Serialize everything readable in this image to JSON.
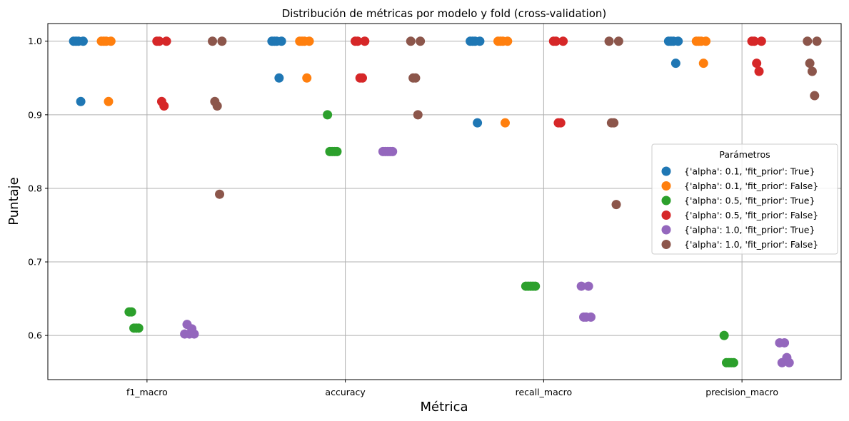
{
  "chart_data": {
    "type": "scatter",
    "title": "Distribución de métricas por modelo y fold (cross-validation)",
    "xlabel": "Métrica",
    "ylabel": "Puntaje",
    "categories": [
      "f1_macro",
      "accuracy",
      "recall_macro",
      "precision_macro"
    ],
    "ylim": [
      0.54,
      1.024
    ],
    "yticks": [
      "0.6",
      "0.7",
      "0.8",
      "0.9",
      "1.0"
    ],
    "grid": true,
    "legend": {
      "title": "Parámetros",
      "placement": "center-right"
    },
    "series": [
      {
        "name": "{'alpha': 0.1, 'fit_prior': True}",
        "color": "#1f77b4",
        "offset": -0.35,
        "values": [
          [
            1.0,
            1.0,
            1.0,
            0.918,
            1.0
          ],
          [
            1.0,
            1.0,
            1.0,
            0.95,
            1.0
          ],
          [
            1.0,
            1.0,
            1.0,
            0.889,
            1.0
          ],
          [
            1.0,
            1.0,
            1.0,
            0.97,
            1.0
          ]
        ]
      },
      {
        "name": "{'alpha': 0.1, 'fit_prior': False}",
        "color": "#ff7f0e",
        "offset": -0.21,
        "values": [
          [
            1.0,
            1.0,
            1.0,
            0.918,
            1.0
          ],
          [
            1.0,
            1.0,
            1.0,
            0.95,
            1.0
          ],
          [
            1.0,
            1.0,
            1.0,
            0.889,
            1.0
          ],
          [
            1.0,
            1.0,
            1.0,
            0.97,
            1.0
          ]
        ]
      },
      {
        "name": "{'alpha': 0.5, 'fit_prior': True}",
        "color": "#2ca02c",
        "offset": -0.07,
        "values": [
          [
            0.632,
            0.632,
            0.61,
            0.61,
            0.61
          ],
          [
            0.9,
            0.85,
            0.85,
            0.85,
            0.85
          ],
          [
            0.667,
            0.667,
            0.667,
            0.667,
            0.667
          ],
          [
            0.6,
            0.563,
            0.563,
            0.563,
            0.563
          ]
        ]
      },
      {
        "name": "{'alpha': 0.5, 'fit_prior': False}",
        "color": "#d62728",
        "offset": 0.07,
        "values": [
          [
            1.0,
            1.0,
            0.918,
            0.912,
            1.0
          ],
          [
            1.0,
            1.0,
            0.95,
            0.95,
            1.0
          ],
          [
            1.0,
            1.0,
            0.889,
            0.889,
            1.0
          ],
          [
            1.0,
            1.0,
            0.97,
            0.959,
            1.0
          ]
        ]
      },
      {
        "name": "{'alpha': 1.0, 'fit_prior': True}",
        "color": "#9467bd",
        "offset": 0.21,
        "values": [
          [
            0.602,
            0.615,
            0.602,
            0.609,
            0.602
          ],
          [
            0.85,
            0.85,
            0.85,
            0.85,
            0.85
          ],
          [
            0.667,
            0.625,
            0.625,
            0.667,
            0.625
          ],
          [
            0.59,
            0.563,
            0.59,
            0.57,
            0.563
          ]
        ]
      },
      {
        "name": "{'alpha': 1.0, 'fit_prior': False}",
        "color": "#8c564b",
        "offset": 0.35,
        "values": [
          [
            1.0,
            0.918,
            0.912,
            0.792,
            1.0
          ],
          [
            1.0,
            0.95,
            0.95,
            0.9,
            1.0
          ],
          [
            1.0,
            0.889,
            0.889,
            0.778,
            1.0
          ],
          [
            1.0,
            0.97,
            0.959,
            0.926,
            1.0
          ]
        ]
      }
    ]
  }
}
